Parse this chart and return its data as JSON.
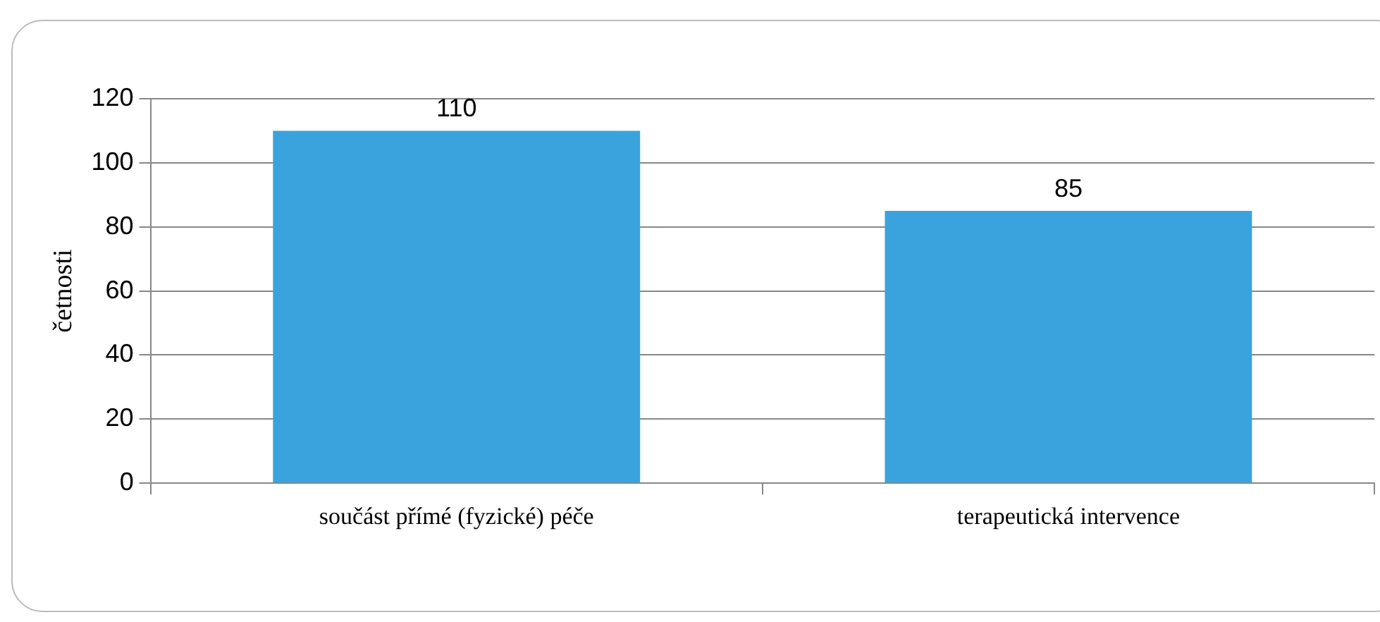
{
  "chart_data": {
    "type": "bar",
    "ylabel": "četnosti",
    "categories": [
      "součást přímé (fyzické) péče",
      "terapeutická intervence"
    ],
    "values": [
      110,
      85
    ],
    "color": "#3aa3dd",
    "ylim": [
      0,
      120
    ],
    "yticks": [
      0,
      20,
      40,
      60,
      80,
      100,
      120
    ],
    "grid": "y",
    "data_labels": true,
    "legend": false
  }
}
